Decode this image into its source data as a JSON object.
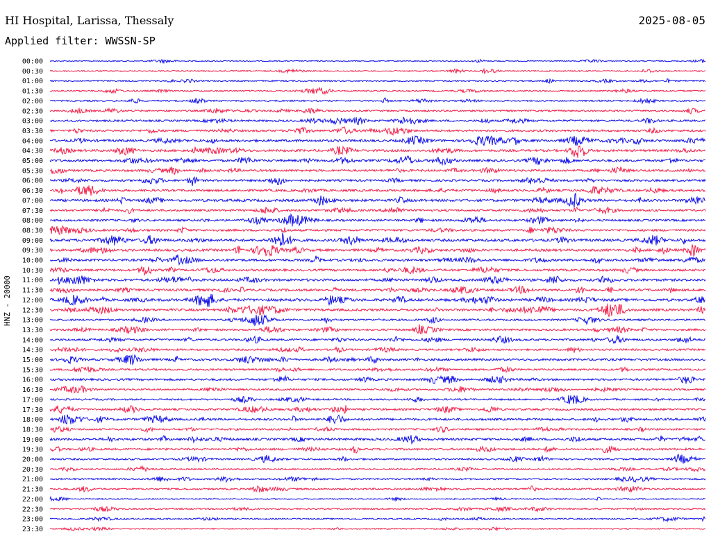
{
  "header": {
    "station": "HI Hospital, Larissa, Thessaly",
    "date": "2025-08-05",
    "filter": "Applied filter: WWSSN-SP"
  },
  "axis": {
    "ylabel": "HNZ - 20000"
  },
  "colors": {
    "even_trace": "#1010e8",
    "odd_trace": "#f0204a",
    "background": "#ffffff"
  },
  "chart_data": {
    "type": "line",
    "title": "HI Hospital, Larissa, Thessaly",
    "date": "2025-08-05",
    "channel": "HNZ - 20000",
    "filter": "WWSSN-SP",
    "row_labels": [
      "00:00",
      "00:30",
      "01:00",
      "01:30",
      "02:00",
      "02:30",
      "03:00",
      "03:30",
      "04:00",
      "04:30",
      "05:00",
      "05:30",
      "06:00",
      "06:30",
      "07:00",
      "07:30",
      "08:00",
      "08:30",
      "09:00",
      "09:30",
      "10:00",
      "10:30",
      "11:00",
      "11:30",
      "12:00",
      "12:30",
      "13:00",
      "13:30",
      "14:00",
      "14:30",
      "15:00",
      "15:30",
      "16:00",
      "16:30",
      "17:00",
      "17:30",
      "18:00",
      "18:30",
      "19:00",
      "19:30",
      "20:00",
      "20:30",
      "21:00",
      "21:30",
      "22:00",
      "22:30",
      "23:00",
      "23:30"
    ],
    "row_activity": [
      0.15,
      0.25,
      0.3,
      0.3,
      0.35,
      0.45,
      0.55,
      0.6,
      0.75,
      0.7,
      0.7,
      0.65,
      0.6,
      0.65,
      0.8,
      0.6,
      0.6,
      0.6,
      0.85,
      0.75,
      0.7,
      0.65,
      0.75,
      0.7,
      0.85,
      0.75,
      0.5,
      0.55,
      0.6,
      0.5,
      0.65,
      0.5,
      0.6,
      0.45,
      0.45,
      0.55,
      0.65,
      0.5,
      0.7,
      0.6,
      0.45,
      0.3,
      0.4,
      0.45,
      0.2,
      0.3,
      0.3,
      0.2
    ],
    "grid": false,
    "legend": "none"
  }
}
